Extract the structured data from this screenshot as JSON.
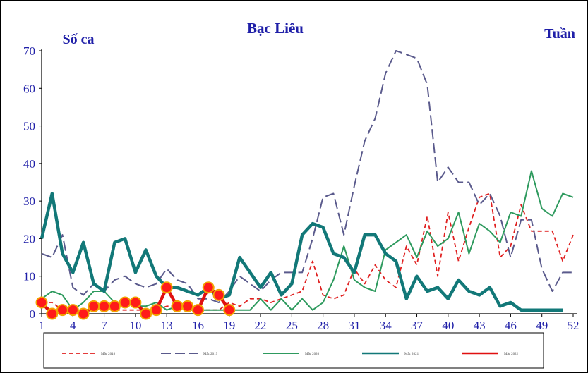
{
  "chart_data": {
    "type": "line",
    "title": "Bạc Liêu",
    "ylabel": "Số ca",
    "xlabel": "Tuần",
    "ylim": [
      0,
      70
    ],
    "xlim": [
      1,
      52
    ],
    "yticks": [
      0,
      10,
      20,
      30,
      40,
      50,
      60,
      70
    ],
    "xticks": [
      1,
      4,
      7,
      10,
      13,
      16,
      19,
      22,
      25,
      28,
      31,
      34,
      37,
      40,
      43,
      46,
      49,
      52
    ],
    "grid": false,
    "legend_position": "bottom",
    "series": [
      {
        "name": "Mắc 2018",
        "color": "#e02020",
        "style": "dashed",
        "x": [
          1,
          2,
          3,
          4,
          5,
          6,
          7,
          8,
          9,
          10,
          11,
          12,
          13,
          14,
          15,
          16,
          17,
          18,
          19,
          20,
          21,
          22,
          23,
          24,
          25,
          26,
          27,
          28,
          29,
          30,
          31,
          32,
          33,
          34,
          35,
          36,
          37,
          38,
          39,
          40,
          41,
          42,
          43,
          44,
          45,
          46,
          47,
          48,
          49,
          50,
          51,
          52
        ],
        "values": [
          3,
          3,
          1,
          1,
          1,
          2,
          2,
          1,
          1,
          1,
          1,
          1,
          2,
          2,
          1,
          1,
          1,
          1,
          3,
          2,
          4,
          4,
          3,
          4,
          5,
          6,
          14,
          5,
          4,
          5,
          12,
          8,
          13,
          9,
          7,
          18,
          13,
          26,
          10,
          27,
          14,
          23,
          31,
          32,
          15,
          18,
          29,
          22,
          22,
          22,
          14,
          21
        ]
      },
      {
        "name": "Mắc 2019",
        "color": "#5a5a8c",
        "style": "dashed",
        "x": [
          1,
          2,
          3,
          4,
          5,
          6,
          7,
          8,
          9,
          10,
          11,
          12,
          13,
          14,
          15,
          16,
          17,
          18,
          19,
          20,
          21,
          22,
          23,
          24,
          25,
          26,
          27,
          28,
          29,
          30,
          31,
          32,
          33,
          34,
          35,
          36,
          37,
          38,
          39,
          40,
          41,
          42,
          43,
          44,
          45,
          46,
          47,
          48,
          49,
          50,
          51,
          52
        ],
        "values": [
          16,
          15,
          21,
          7,
          5,
          8,
          6,
          9,
          10,
          8,
          7,
          8,
          12,
          9,
          8,
          4,
          4,
          3,
          6,
          10,
          8,
          6,
          9,
          11,
          11,
          11,
          20,
          31,
          32,
          21,
          34,
          46,
          52,
          64,
          70,
          69,
          68,
          61,
          35,
          39,
          35,
          35,
          29,
          32,
          26,
          15,
          25,
          25,
          12,
          6,
          11,
          11
        ]
      },
      {
        "name": "Mắc 2020",
        "color": "#2e9a5e",
        "style": "solid",
        "x": [
          1,
          2,
          3,
          4,
          5,
          6,
          7,
          8,
          9,
          10,
          11,
          12,
          13,
          14,
          15,
          16,
          17,
          18,
          19,
          20,
          21,
          22,
          23,
          24,
          25,
          26,
          27,
          28,
          29,
          30,
          31,
          32,
          33,
          34,
          35,
          36,
          37,
          38,
          39,
          40,
          41,
          42,
          43,
          44,
          45,
          46,
          47,
          48,
          49,
          50,
          51,
          52
        ],
        "values": [
          4,
          6,
          5,
          1,
          3,
          6,
          6,
          3,
          3,
          2,
          2,
          3,
          1,
          2,
          1,
          1,
          1,
          1,
          1,
          1,
          1,
          4,
          1,
          4,
          1,
          4,
          1,
          3,
          9,
          18,
          9,
          7,
          6,
          17,
          19,
          21,
          15,
          22,
          18,
          20,
          27,
          16,
          24,
          22,
          19,
          27,
          26,
          38,
          28,
          26,
          32,
          31
        ]
      },
      {
        "name": "Mắc 2021",
        "color": "#127878",
        "style": "solid",
        "x": [
          1,
          2,
          3,
          4,
          5,
          6,
          7,
          8,
          9,
          10,
          11,
          12,
          13,
          14,
          15,
          16,
          17,
          18,
          19,
          20,
          21,
          22,
          23,
          24,
          25,
          26,
          27,
          28,
          29,
          30,
          31,
          32,
          33,
          34,
          35,
          36,
          37,
          38,
          39,
          40,
          41,
          42,
          43,
          44,
          45,
          46,
          47,
          48,
          49,
          50,
          51
        ],
        "values": [
          20,
          32,
          16,
          11,
          19,
          8,
          6,
          19,
          20,
          11,
          17,
          10,
          7,
          7,
          6,
          5,
          7,
          4,
          5,
          15,
          11,
          7,
          11,
          5,
          8,
          21,
          24,
          23,
          16,
          15,
          11,
          21,
          21,
          16,
          14,
          4,
          10,
          6,
          7,
          4,
          9,
          6,
          5,
          7,
          2,
          3,
          1,
          1,
          1,
          1,
          1
        ]
      },
      {
        "name": "Mắc 2022",
        "color": "#e01010",
        "style": "solid-marker",
        "x": [
          1,
          2,
          3,
          4,
          5,
          6,
          7,
          8,
          9,
          10,
          11,
          12,
          13,
          14,
          15,
          16,
          17,
          18,
          19
        ],
        "values": [
          3,
          0,
          1,
          1,
          0,
          2,
          2,
          2,
          3,
          3,
          0,
          1,
          7,
          2,
          2,
          1,
          7,
          5,
          1
        ]
      }
    ]
  }
}
